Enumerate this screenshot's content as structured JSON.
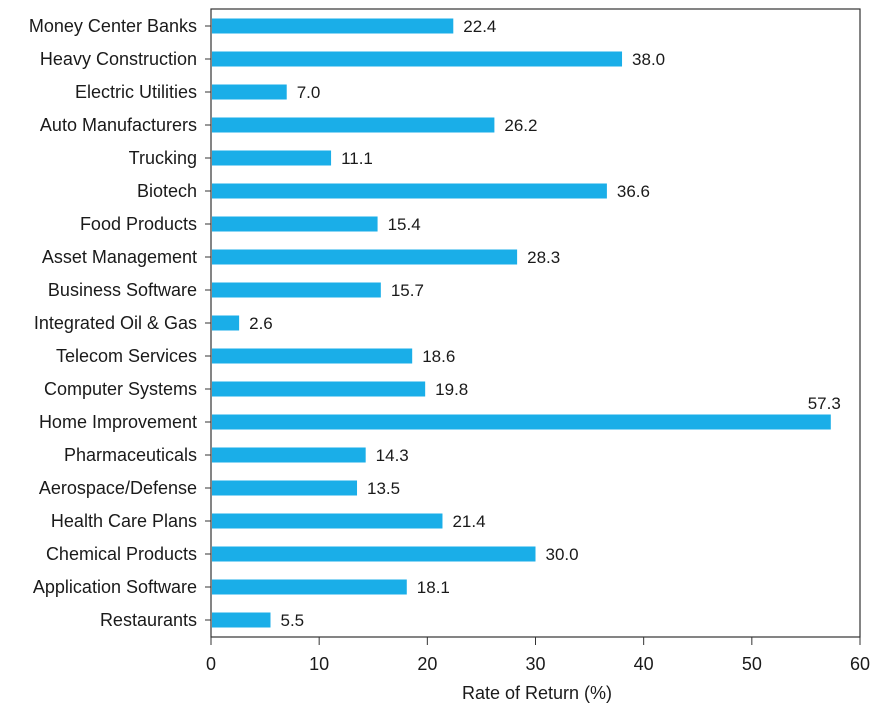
{
  "chart_data": {
    "type": "bar",
    "orientation": "horizontal",
    "title": "",
    "xlabel": "Rate of Return (%)",
    "ylabel": "",
    "xlim": [
      0,
      60
    ],
    "x_ticks": [
      0,
      10,
      20,
      30,
      40,
      50,
      60
    ],
    "grid": false,
    "bar_color": "#1aaee8",
    "categories": [
      "Money Center Banks",
      "Heavy Construction",
      "Electric Utilities",
      "Auto Manufacturers",
      "Trucking",
      "Biotech",
      "Food Products",
      "Asset Management",
      "Business Software",
      "Integrated Oil & Gas",
      "Telecom Services",
      "Computer Systems",
      "Home Improvement",
      "Pharmaceuticals",
      "Aerospace/Defense",
      "Health Care Plans",
      "Chemical Products",
      "Application Software",
      "Restaurants"
    ],
    "values": [
      22.4,
      38.0,
      7.0,
      26.2,
      11.1,
      36.6,
      15.4,
      28.3,
      15.7,
      2.6,
      18.6,
      19.8,
      57.3,
      14.3,
      13.5,
      21.4,
      30.0,
      18.1,
      5.5
    ],
    "value_labels": [
      "22.4",
      "38.0",
      "7.0",
      "26.2",
      "11.1",
      "36.6",
      "15.4",
      "28.3",
      "15.7",
      "2.6",
      "18.6",
      "19.8",
      "57.3",
      "14.3",
      "13.5",
      "21.4",
      "30.0",
      "18.1",
      "5.5"
    ]
  }
}
